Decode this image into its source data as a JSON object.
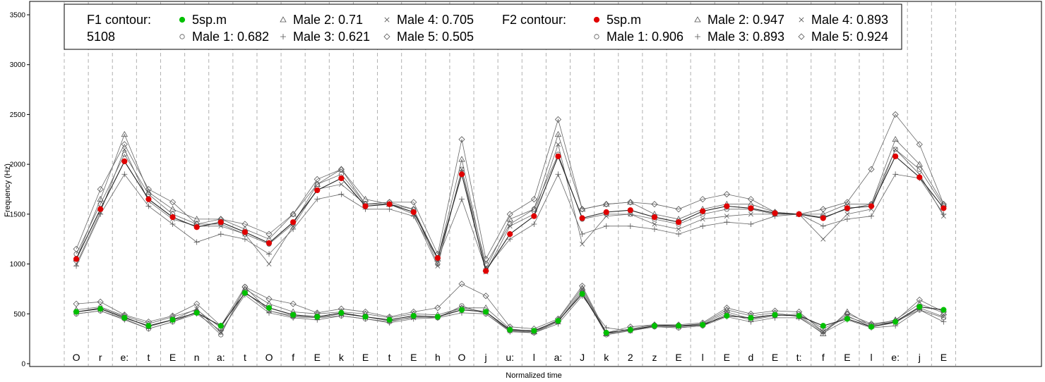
{
  "chart_data": {
    "type": "line",
    "xlabel": "Normalized time",
    "ylabel": "Frequency (Hz)",
    "ylim": [
      0,
      3600
    ],
    "yticks": [
      0,
      500,
      1000,
      1500,
      2000,
      2500,
      3000,
      3500
    ],
    "grid": "vertical dashed lines at segment boundaries",
    "legend_placement": "top-left",
    "segments": [
      "O",
      "r",
      "e:",
      "t",
      "E",
      "n",
      "a:",
      "t",
      "O",
      "f",
      "E",
      "k",
      "E",
      "t",
      "E",
      "h",
      "O",
      "j",
      "u:",
      "l",
      "a:",
      "J",
      "k",
      "2",
      "z",
      "E",
      "l",
      "E",
      "d",
      "E",
      "t:",
      "f",
      "E",
      "l",
      "e:",
      "j",
      "E"
    ],
    "legend": {
      "f1_title": "F1 contour:",
      "f1_id": "5108",
      "f1_entries": [
        "5sp.m",
        "Male 1: 0.682",
        "Male 2: 0.71",
        "Male 3: 0.621",
        "Male 4: 0.705",
        "Male 5: 0.505"
      ],
      "f2_title": "F2 contour:",
      "f2_entries": [
        "5sp.m",
        "Male 1: 0.906",
        "Male 2: 0.947",
        "Male 3: 0.893",
        "Male 4: 0.893",
        "Male 5: 0.924"
      ]
    },
    "f1_series": [
      {
        "name": "5sp.m",
        "color": "#00c000",
        "marker": "filled-circle",
        "values": [
          520,
          550,
          460,
          380,
          440,
          510,
          380,
          710,
          560,
          490,
          470,
          510,
          470,
          440,
          480,
          470,
          540,
          520,
          340,
          330,
          430,
          700,
          310,
          340,
          380,
          380,
          390,
          480,
          460,
          490,
          480,
          380,
          450,
          370,
          420,
          570,
          540
        ]
      },
      {
        "name": "Male 1",
        "marker": "open-circle",
        "values": [
          500,
          530,
          450,
          350,
          420,
          520,
          290,
          770,
          530,
          470,
          460,
          480,
          450,
          420,
          470,
          460,
          580,
          500,
          330,
          310,
          420,
          720,
          290,
          330,
          370,
          360,
          380,
          500,
          440,
          480,
          500,
          350,
          470,
          390,
          420,
          540,
          460
        ]
      },
      {
        "name": "Male 2",
        "marker": "triangle",
        "values": [
          540,
          570,
          480,
          400,
          470,
          540,
          360,
          750,
          600,
          520,
          500,
          520,
          500,
          460,
          500,
          490,
          560,
          560,
          350,
          320,
          440,
          760,
          300,
          350,
          390,
          380,
          400,
          540,
          480,
          510,
          470,
          300,
          520,
          380,
          440,
          600,
          510
        ]
      },
      {
        "name": "Male 3",
        "marker": "plus",
        "values": [
          500,
          530,
          440,
          350,
          420,
          500,
          330,
          690,
          510,
          460,
          440,
          480,
          450,
          410,
          450,
          460,
          510,
          500,
          320,
          310,
          400,
          680,
          360,
          330,
          370,
          360,
          380,
          470,
          420,
          460,
          460,
          310,
          440,
          360,
          380,
          540,
          420
        ]
      },
      {
        "name": "Male 4",
        "marker": "x",
        "values": [
          520,
          560,
          470,
          370,
          440,
          550,
          310,
          720,
          530,
          480,
          460,
          500,
          470,
          430,
          460,
          470,
          560,
          520,
          330,
          320,
          420,
          740,
          300,
          330,
          380,
          370,
          390,
          520,
          450,
          490,
          480,
          320,
          480,
          370,
          410,
          560,
          470
        ]
      },
      {
        "name": "Male 5",
        "marker": "diamond",
        "values": [
          600,
          620,
          490,
          420,
          480,
          600,
          380,
          770,
          650,
          600,
          510,
          550,
          520,
          470,
          520,
          560,
          800,
          680,
          370,
          350,
          450,
          780,
          310,
          370,
          390,
          390,
          410,
          560,
          500,
          530,
          520,
          320,
          500,
          400,
          430,
          640,
          520
        ]
      }
    ],
    "f2_series": [
      {
        "name": "5sp.m",
        "color": "#e00000",
        "marker": "filled-circle",
        "values": [
          1050,
          1550,
          2030,
          1650,
          1470,
          1370,
          1420,
          1320,
          1210,
          1420,
          1740,
          1860,
          1580,
          1600,
          1520,
          1060,
          1900,
          930,
          1300,
          1480,
          2080,
          1460,
          1520,
          1540,
          1470,
          1420,
          1530,
          1580,
          1560,
          1510,
          1500,
          1460,
          1560,
          1580,
          2080,
          1870,
          1560
        ]
      },
      {
        "name": "Male 1",
        "marker": "open-circle",
        "values": [
          1100,
          1600,
          2100,
          1700,
          1500,
          1400,
          1400,
          1300,
          1200,
          1400,
          1800,
          1900,
          1600,
          1620,
          1550,
          1000,
          1950,
          1000,
          1400,
          1550,
          2100,
          1450,
          1500,
          1500,
          1450,
          1400,
          1500,
          1550,
          1550,
          1500,
          1500,
          1470,
          1550,
          1600,
          2150,
          1950,
          1580
        ]
      },
      {
        "name": "Male 2",
        "marker": "triangle",
        "values": [
          1050,
          1650,
          2300,
          1720,
          1550,
          1450,
          1450,
          1350,
          1250,
          1500,
          1800,
          1950,
          1650,
          1600,
          1550,
          1050,
          2050,
          950,
          1450,
          1550,
          2300,
          1550,
          1600,
          1620,
          1500,
          1450,
          1550,
          1600,
          1600,
          1520,
          1500,
          1500,
          1600,
          1600,
          2250,
          2000,
          1600
        ]
      },
      {
        "name": "Male 3",
        "marker": "plus",
        "values": [
          980,
          1500,
          1900,
          1580,
          1400,
          1220,
          1300,
          1250,
          1100,
          1350,
          1650,
          1700,
          1550,
          1550,
          1480,
          1050,
          1650,
          950,
          1250,
          1400,
          1900,
          1300,
          1380,
          1380,
          1350,
          1300,
          1380,
          1420,
          1400,
          1480,
          1500,
          1380,
          1450,
          1480,
          1900,
          1860,
          1500
        ]
      },
      {
        "name": "Male 4",
        "marker": "x",
        "values": [
          1000,
          1520,
          2150,
          1630,
          1450,
          1380,
          1380,
          1300,
          1000,
          1380,
          1750,
          1800,
          1600,
          1600,
          1500,
          980,
          1950,
          920,
          1380,
          1500,
          2200,
          1200,
          1480,
          1500,
          1400,
          1350,
          1450,
          1480,
          1500,
          1500,
          1500,
          1250,
          1500,
          1550,
          2150,
          1900,
          1480
        ]
      },
      {
        "name": "Male 5",
        "marker": "diamond",
        "values": [
          1150,
          1750,
          2200,
          1750,
          1620,
          1400,
          1450,
          1400,
          1300,
          1500,
          1850,
          1950,
          1600,
          1620,
          1620,
          1100,
          2250,
          1050,
          1500,
          1650,
          2450,
          1550,
          1600,
          1620,
          1600,
          1550,
          1650,
          1700,
          1650,
          1520,
          1500,
          1550,
          1620,
          1950,
          2500,
          2200,
          1600
        ]
      }
    ]
  }
}
